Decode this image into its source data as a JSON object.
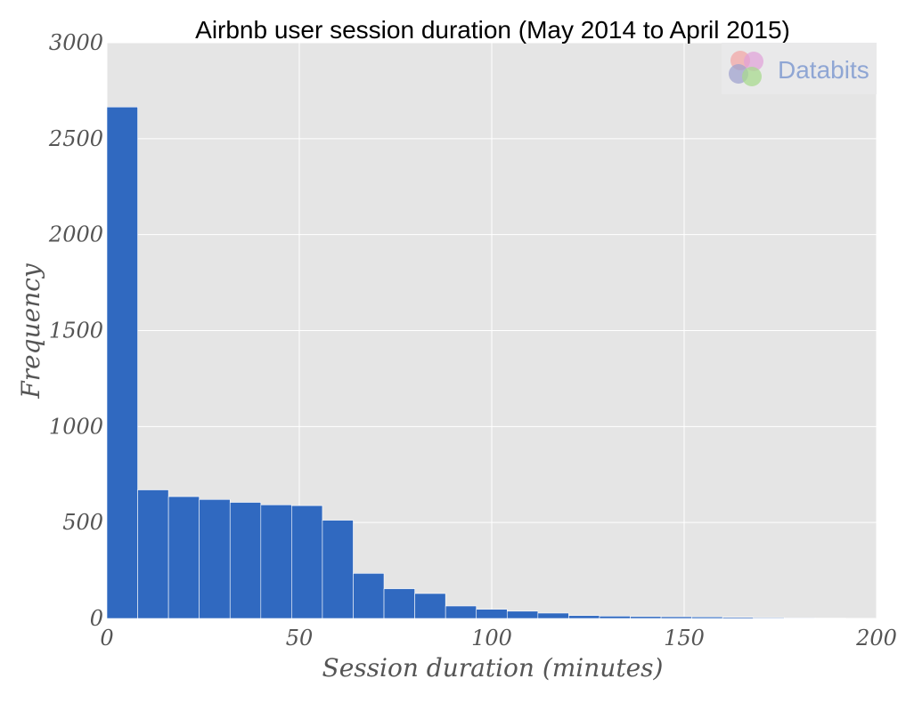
{
  "chart_data": {
    "type": "bar",
    "title": "Airbnb user session duration (May 2014 to April 2015)",
    "xlabel": "Session duration (minutes)",
    "ylabel": "Frequency",
    "xlim": [
      0,
      200
    ],
    "ylim": [
      0,
      3000
    ],
    "x_ticks": [
      "0",
      "50",
      "100",
      "150",
      "200"
    ],
    "y_ticks": [
      "0",
      "500",
      "1000",
      "1500",
      "2000",
      "2500",
      "3000"
    ],
    "x_tick_values": [
      0,
      50,
      100,
      150,
      200
    ],
    "y_tick_values": [
      0,
      500,
      1000,
      1500,
      2000,
      2500,
      3000
    ],
    "bin_width": 8,
    "bin_starts": [
      0,
      8,
      16,
      24,
      32,
      40,
      48,
      56,
      64,
      72,
      80,
      88,
      96,
      104,
      112,
      120,
      128,
      136,
      144,
      152,
      160,
      168,
      176,
      184,
      192
    ],
    "values": [
      2665,
      670,
      635,
      620,
      605,
      592,
      588,
      512,
      235,
      155,
      130,
      65,
      48,
      38,
      28,
      15,
      12,
      10,
      9,
      8,
      6,
      4,
      3,
      2,
      1
    ],
    "grid": true,
    "bar_color": "#3069c0",
    "background_color": "#e5e5e5",
    "grid_color": "#ffffff"
  },
  "watermark": {
    "text": "Databits"
  }
}
